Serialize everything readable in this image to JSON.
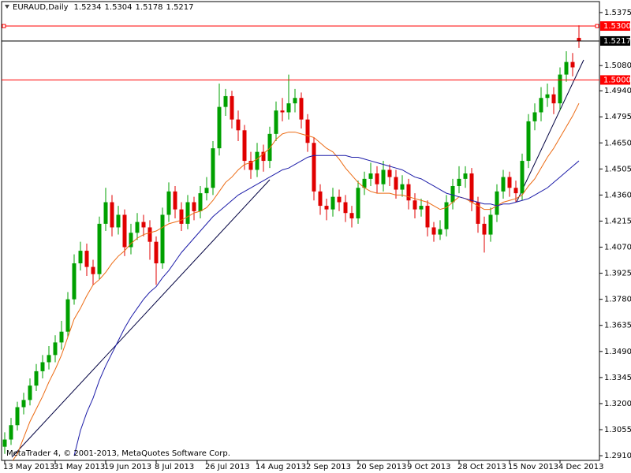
{
  "chart_data": {
    "type": "candlestick",
    "title": "EURAUD,Daily",
    "credit": "MetaTrader 4, © 2001-2013, MetaQuotes Software Corp.",
    "categories": [
      "13 May 2013",
      null,
      null,
      null,
      null,
      null,
      null,
      null,
      "31 May 2013",
      null,
      null,
      null,
      null,
      null,
      null,
      null,
      "19 Jun 2013",
      null,
      null,
      null,
      null,
      null,
      null,
      null,
      "8 Jul 2013",
      null,
      null,
      null,
      null,
      null,
      null,
      null,
      "26 Jul 2013",
      null,
      null,
      null,
      null,
      null,
      null,
      null,
      "14 Aug 2013",
      null,
      null,
      null,
      null,
      null,
      null,
      null,
      "2 Sep 2013",
      null,
      null,
      null,
      null,
      null,
      null,
      null,
      "20 Sep 2013",
      null,
      null,
      null,
      null,
      null,
      null,
      null,
      "9 Oct 2013",
      null,
      null,
      null,
      null,
      null,
      null,
      null,
      "28 Oct 2013",
      null,
      null,
      null,
      null,
      null,
      null,
      null,
      "15 Nov 2013",
      null,
      null,
      null,
      null,
      null,
      null,
      null,
      "4 Dec 2013",
      null,
      null,
      null
    ],
    "open": [
      1.296,
      1.3,
      1.308,
      1.318,
      1.322,
      1.33,
      1.338,
      1.343,
      1.347,
      1.354,
      1.36,
      1.378,
      1.398,
      1.405,
      1.396,
      1.392,
      1.42,
      1.432,
      1.418,
      1.425,
      1.407,
      1.415,
      1.421,
      1.418,
      1.41,
      1.398,
      1.425,
      1.438,
      1.428,
      1.42,
      1.432,
      1.427,
      1.437,
      1.44,
      1.462,
      1.485,
      1.491,
      1.478,
      1.472,
      1.455,
      1.45,
      1.46,
      1.455,
      1.47,
      1.483,
      1.482,
      1.487,
      1.49,
      1.478,
      1.465,
      1.438,
      1.43,
      1.428,
      1.435,
      1.432,
      1.426,
      1.423,
      1.44,
      1.445,
      1.448,
      1.442,
      1.45,
      1.446,
      1.439,
      1.442,
      1.433,
      1.428,
      1.43,
      1.418,
      1.414,
      1.417,
      1.432,
      1.441,
      1.445,
      1.448,
      1.432,
      1.42,
      1.414,
      1.425,
      1.438,
      1.446,
      1.44,
      1.437,
      1.455,
      1.477,
      1.482,
      1.49,
      1.492,
      1.487,
      1.503,
      1.51,
      1.5234
    ],
    "high": [
      1.304,
      1.312,
      1.321,
      1.326,
      1.334,
      1.342,
      1.347,
      1.352,
      1.358,
      1.366,
      1.382,
      1.403,
      1.41,
      1.409,
      1.4,
      1.424,
      1.44,
      1.436,
      1.43,
      1.428,
      1.42,
      1.426,
      1.425,
      1.422,
      1.413,
      1.429,
      1.443,
      1.441,
      1.432,
      1.436,
      1.435,
      1.441,
      1.446,
      1.466,
      1.498,
      1.495,
      1.494,
      1.483,
      1.475,
      1.46,
      1.465,
      1.464,
      1.474,
      1.488,
      1.49,
      1.503,
      1.495,
      1.493,
      1.481,
      1.468,
      1.442,
      1.434,
      1.44,
      1.439,
      1.436,
      1.43,
      1.444,
      1.449,
      1.454,
      1.452,
      1.455,
      1.453,
      1.45,
      1.447,
      1.445,
      1.437,
      1.434,
      1.433,
      1.421,
      1.422,
      1.436,
      1.445,
      1.452,
      1.452,
      1.451,
      1.435,
      1.424,
      1.429,
      1.442,
      1.45,
      1.449,
      1.444,
      1.459,
      1.481,
      1.487,
      1.496,
      1.498,
      1.496,
      1.507,
      1.516,
      1.515,
      1.5304
    ],
    "low": [
      1.292,
      1.297,
      1.305,
      1.314,
      1.319,
      1.327,
      1.334,
      1.339,
      1.343,
      1.35,
      1.357,
      1.375,
      1.394,
      1.391,
      1.386,
      1.389,
      1.416,
      1.413,
      1.414,
      1.402,
      1.403,
      1.411,
      1.413,
      1.4,
      1.386,
      1.395,
      1.421,
      1.423,
      1.416,
      1.417,
      1.422,
      1.423,
      1.433,
      1.436,
      1.458,
      1.48,
      1.473,
      1.466,
      1.45,
      1.445,
      1.446,
      1.449,
      1.451,
      1.466,
      1.477,
      1.478,
      1.482,
      1.473,
      1.46,
      1.433,
      1.425,
      1.422,
      1.424,
      1.427,
      1.421,
      1.418,
      1.42,
      1.436,
      1.441,
      1.437,
      1.438,
      1.441,
      1.434,
      1.435,
      1.428,
      1.423,
      1.424,
      1.413,
      1.41,
      1.411,
      1.413,
      1.428,
      1.437,
      1.44,
      1.427,
      1.415,
      1.404,
      1.41,
      1.421,
      1.434,
      1.435,
      1.432,
      1.433,
      1.451,
      1.472,
      1.477,
      1.485,
      1.481,
      1.483,
      1.499,
      1.502,
      1.5178
    ],
    "close": [
      1.3,
      1.308,
      1.318,
      1.322,
      1.33,
      1.338,
      1.343,
      1.347,
      1.354,
      1.36,
      1.378,
      1.398,
      1.405,
      1.396,
      1.392,
      1.42,
      1.432,
      1.418,
      1.425,
      1.407,
      1.415,
      1.421,
      1.418,
      1.41,
      1.398,
      1.425,
      1.438,
      1.428,
      1.42,
      1.432,
      1.427,
      1.437,
      1.44,
      1.462,
      1.485,
      1.491,
      1.478,
      1.472,
      1.455,
      1.45,
      1.46,
      1.455,
      1.47,
      1.483,
      1.482,
      1.487,
      1.49,
      1.478,
      1.465,
      1.438,
      1.43,
      1.428,
      1.435,
      1.432,
      1.426,
      1.423,
      1.44,
      1.445,
      1.448,
      1.442,
      1.45,
      1.446,
      1.439,
      1.442,
      1.433,
      1.428,
      1.43,
      1.418,
      1.414,
      1.417,
      1.432,
      1.441,
      1.445,
      1.448,
      1.432,
      1.42,
      1.414,
      1.425,
      1.438,
      1.446,
      1.44,
      1.437,
      1.455,
      1.477,
      1.482,
      1.49,
      1.492,
      1.487,
      1.503,
      1.51,
      1.507,
      1.5217
    ],
    "up_color": "#00a000",
    "down_color": "#e00000",
    "moving_averages": [
      {
        "color": "#ec6a12",
        "values": [
          null,
          1.287,
          1.292,
          1.301,
          1.31,
          1.317,
          1.324,
          1.332,
          1.339,
          1.347,
          1.357,
          1.367,
          1.373,
          1.38,
          1.386,
          1.389,
          1.393,
          1.398,
          1.402,
          1.405,
          1.409,
          1.412,
          1.414,
          1.415,
          1.416,
          1.418,
          1.42,
          1.421,
          1.422,
          1.424,
          1.426,
          1.427,
          1.429,
          1.433,
          1.438,
          1.443,
          1.446,
          1.45,
          1.453,
          1.454,
          1.456,
          1.459,
          1.462,
          1.467,
          1.47,
          1.471,
          1.471,
          1.47,
          1.469,
          1.468,
          1.465,
          1.462,
          1.46,
          1.456,
          1.451,
          1.447,
          1.443,
          1.44,
          1.438,
          1.437,
          1.437,
          1.437,
          1.436,
          1.436,
          1.435,
          1.434,
          1.433,
          1.432,
          1.43,
          1.428,
          1.429,
          1.432,
          1.435,
          1.434,
          1.432,
          1.43,
          1.428,
          1.428,
          1.43,
          1.432,
          1.433,
          1.434,
          1.436,
          1.441,
          1.445,
          1.451,
          1.457,
          1.462,
          1.468,
          1.474,
          1.48,
          1.487
        ]
      },
      {
        "color": "#1c1ca8",
        "values": [
          null,
          null,
          null,
          null,
          null,
          null,
          null,
          null,
          null,
          null,
          null,
          1.291,
          1.305,
          1.315,
          1.323,
          1.333,
          1.341,
          1.348,
          1.355,
          1.362,
          1.368,
          1.373,
          1.378,
          1.382,
          1.385,
          1.39,
          1.394,
          1.399,
          1.404,
          1.408,
          1.412,
          1.416,
          1.42,
          1.424,
          1.427,
          1.43,
          1.433,
          1.436,
          1.438,
          1.44,
          1.442,
          1.444,
          1.446,
          1.448,
          1.45,
          1.451,
          1.453,
          1.455,
          1.457,
          1.458,
          1.458,
          1.458,
          1.458,
          1.458,
          1.458,
          1.457,
          1.457,
          1.456,
          1.455,
          1.454,
          1.453,
          1.452,
          1.451,
          1.45,
          1.448,
          1.446,
          1.445,
          1.443,
          1.441,
          1.439,
          1.437,
          1.436,
          1.435,
          1.434,
          1.433,
          1.432,
          1.431,
          1.431,
          1.43,
          1.431,
          1.431,
          1.432,
          1.433,
          1.434,
          1.436,
          1.438,
          1.44,
          1.443,
          1.446,
          1.449,
          1.452,
          1.455
        ]
      }
    ],
    "hlines": [
      {
        "value": 1.53,
        "label": "1.5300",
        "color": "#ff0000"
      },
      {
        "value": 1.5217,
        "color": "#000000"
      },
      {
        "value": 1.5,
        "label": "1.5000",
        "color": "#ff0000"
      }
    ],
    "ylim": [
      1.2884,
      1.5436
    ],
    "yticks": [
      1.5375,
      {
        "value": 1.508,
        "label": "1.5080"
      },
      {
        "value": 1.494,
        "label": "1.4940"
      },
      1.4795,
      {
        "value": 1.465,
        "label": "1.4650"
      },
      1.4505,
      {
        "value": 1.436,
        "label": "1.4360"
      },
      1.4215,
      {
        "value": 1.407,
        "label": "1.4070"
      },
      1.3925,
      {
        "value": 1.378,
        "label": "1.3780"
      },
      1.3635,
      {
        "value": 1.349,
        "label": "1.3490"
      },
      1.3345,
      {
        "value": 1.32,
        "label": "1.3200"
      },
      1.3055,
      {
        "value": 1.291,
        "label": "1.2910"
      }
    ],
    "grid": false
  }
}
